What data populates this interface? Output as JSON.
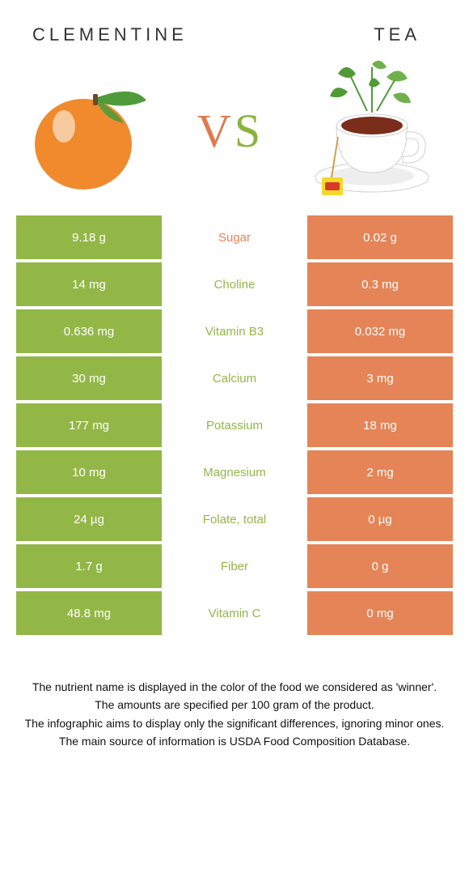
{
  "colors": {
    "left_bg": "#93b747",
    "right_bg": "#e58457",
    "mid_winner_left": "#93b747",
    "mid_winner_right": "#e58457",
    "title_color": "#333333",
    "vs_left": "#e17a4f",
    "vs_right": "#8ab33e",
    "cell_text": "#ffffff",
    "footer_text": "#111111"
  },
  "header": {
    "left": "Clementine",
    "right": "Tea"
  },
  "vs": {
    "v": "V",
    "s": "S"
  },
  "rows": [
    {
      "left": "9.18 g",
      "label": "Sugar",
      "right": "0.02 g",
      "winner": "right"
    },
    {
      "left": "14 mg",
      "label": "Choline",
      "right": "0.3 mg",
      "winner": "left"
    },
    {
      "left": "0.636 mg",
      "label": "Vitamin B3",
      "right": "0.032 mg",
      "winner": "left"
    },
    {
      "left": "30 mg",
      "label": "Calcium",
      "right": "3 mg",
      "winner": "left"
    },
    {
      "left": "177 mg",
      "label": "Potassium",
      "right": "18 mg",
      "winner": "left"
    },
    {
      "left": "10 mg",
      "label": "Magnesium",
      "right": "2 mg",
      "winner": "left"
    },
    {
      "left": "24 µg",
      "label": "Folate, total",
      "right": "0 µg",
      "winner": "left"
    },
    {
      "left": "1.7 g",
      "label": "Fiber",
      "right": "0 g",
      "winner": "left"
    },
    {
      "left": "48.8 mg",
      "label": "Vitamin C",
      "right": "0 mg",
      "winner": "left"
    }
  ],
  "footer": {
    "l1": "The nutrient name is displayed in the color of the food we considered as 'winner'.",
    "l2": "The amounts are specified per 100 gram of the product.",
    "l3": "The infographic aims to display only the significant differences, ignoring minor ones.",
    "l4": "The main source of information is USDA Food Composition Database."
  }
}
